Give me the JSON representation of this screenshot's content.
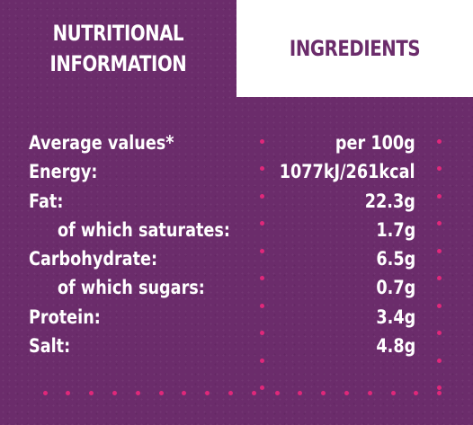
{
  "tabs": {
    "nutrition_line1": "NUTRITIONAL",
    "nutrition_line2": "INFORMATION",
    "ingredients": "INGREDIENTS"
  },
  "table": {
    "header": {
      "label": "Average values*",
      "value": "per 100g"
    },
    "rows": [
      {
        "label": "Energy:",
        "value": "1077kJ/261kcal"
      },
      {
        "label": "Fat:",
        "value": "22.3g"
      },
      {
        "label": "of which saturates:",
        "value": "1.7g"
      },
      {
        "label": "Carbohydrate:",
        "value": "6.5g"
      },
      {
        "label": "of which sugars:",
        "value": "0.7g"
      },
      {
        "label": "Protein:",
        "value": "3.4g"
      },
      {
        "label": "Salt:",
        "value": "4.8g"
      }
    ]
  },
  "colors": {
    "background": "#6b2c6b",
    "text": "#ffffff",
    "accent_dots": "#e0287a",
    "tab_active_bg": "#ffffff"
  }
}
